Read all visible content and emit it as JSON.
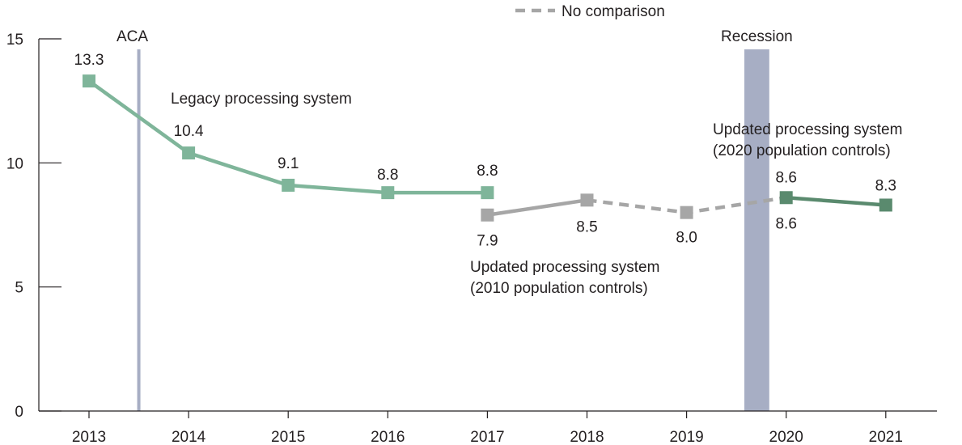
{
  "chart_data": {
    "type": "line",
    "x": [
      "2013",
      "2014",
      "2015",
      "2016",
      "2017",
      "2018",
      "2019",
      "2020",
      "2021"
    ],
    "ylim": [
      0,
      15
    ],
    "yticks": [
      "0",
      "5",
      "10",
      "15"
    ],
    "grid": false,
    "series": [
      {
        "key": "legacy",
        "color": "#7fb59a",
        "style": "solid",
        "points": [
          {
            "x": "2013",
            "y": 13.3,
            "label": "13.3"
          },
          {
            "x": "2014",
            "y": 10.4,
            "label": "10.4"
          },
          {
            "x": "2015",
            "y": 9.1,
            "label": "9.1"
          },
          {
            "x": "2016",
            "y": 8.8,
            "label": "8.8"
          },
          {
            "x": "2017",
            "y": 8.8,
            "label": "8.8"
          }
        ]
      },
      {
        "key": "updated2010",
        "color": "#a6a6a6",
        "style": "solid",
        "points": [
          {
            "x": "2017",
            "y": 7.9,
            "label": "7.9"
          },
          {
            "x": "2018",
            "y": 8.5,
            "label": "8.5"
          }
        ]
      },
      {
        "key": "no-comparison",
        "name": "No comparison",
        "color": "#a6a6a6",
        "style": "dashed",
        "points": [
          {
            "x": "2018",
            "y": 8.5
          },
          {
            "x": "2019",
            "y": 8.0,
            "label": "8.0"
          },
          {
            "x": "2020",
            "y": 8.6,
            "label": "8.6"
          }
        ]
      },
      {
        "key": "updated2020",
        "color": "#5a8a6e",
        "style": "solid",
        "points": [
          {
            "x": "2020",
            "y": 8.6,
            "label": "8.6"
          },
          {
            "x": "2021",
            "y": 8.3,
            "label": "8.3"
          }
        ]
      }
    ],
    "annotations": [
      {
        "key": "legacy",
        "lines": [
          "Legacy processing system"
        ]
      },
      {
        "key": "updated2010",
        "lines": [
          "Updated processing system",
          "(2010 population controls)"
        ]
      },
      {
        "key": "updated2020",
        "lines": [
          "Updated processing system",
          "(2020 population controls)"
        ]
      }
    ],
    "events": [
      {
        "key": "aca",
        "label": "ACA",
        "start": 2013.5,
        "end": 2013.5,
        "color": "#a7aec4"
      },
      {
        "key": "recession",
        "label": "Recession",
        "start": 2019.58,
        "end": 2019.83,
        "color": "#a7aec4"
      }
    ],
    "legend": {
      "position": "top",
      "entries": [
        {
          "label": "No comparison",
          "color": "#a6a6a6",
          "style": "dashed"
        }
      ]
    }
  }
}
